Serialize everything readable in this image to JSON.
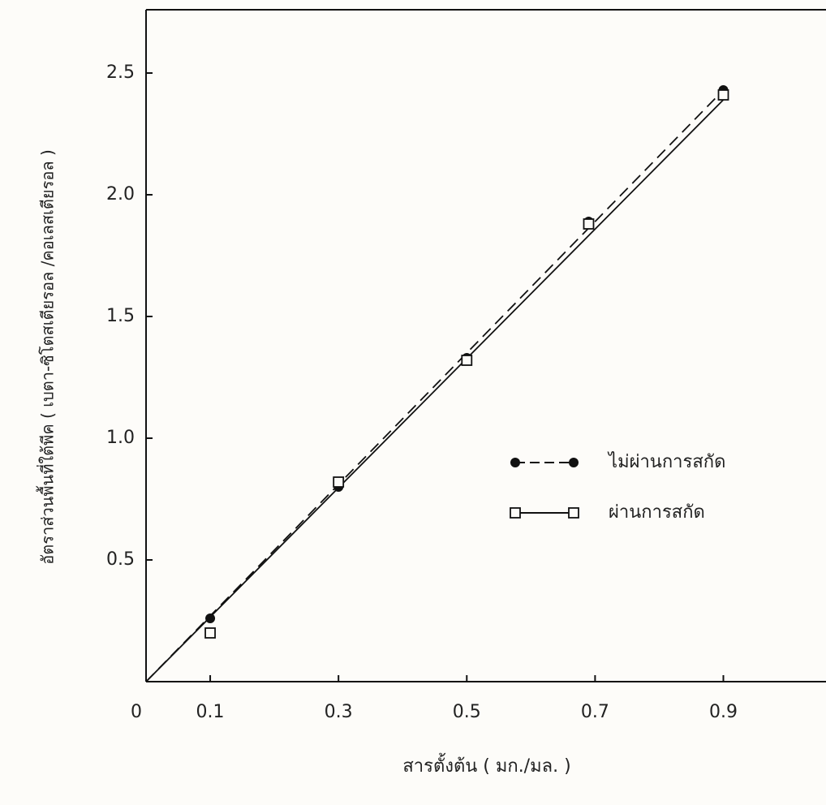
{
  "chart_data": {
    "type": "line",
    "x_label": "สารตั้งต้น ( มก./มล. )",
    "y_label": "อัตราส่วนพื้นที่ใต้พีค ( เบตา-ซิโตสเตียรอล /คอเลสเตียรอล )",
    "xlim": [
      0,
      1.06
    ],
    "ylim": [
      0,
      2.76
    ],
    "xticks": [
      0,
      0.1,
      0.3,
      0.5,
      0.7,
      0.9
    ],
    "yticks": [
      0.5,
      {
        "value": 1,
        "label": "1.0"
      },
      1.5,
      {
        "value": 2,
        "label": "2.0"
      },
      2.5
    ],
    "legend": "right",
    "series": [
      {
        "name": "ไม่ผ่านการสกัด",
        "color": "#111111",
        "marker": "filled-circle",
        "dash": true,
        "x": [
          0.1,
          0.3,
          0.5,
          0.69,
          0.9
        ],
        "values": [
          0.26,
          0.8,
          1.33,
          1.89,
          2.43
        ],
        "line_x": [
          0,
          0.9
        ],
        "line_y": [
          0,
          2.43
        ]
      },
      {
        "name": "ผ่านการสกัด",
        "color": "#111111",
        "marker": "open-square",
        "dash": false,
        "x": [
          0.1,
          0.3,
          0.5,
          0.69,
          0.9
        ],
        "values": [
          0.2,
          0.82,
          1.32,
          1.88,
          2.41
        ],
        "line_x": [
          0,
          0.9
        ],
        "line_y": [
          0,
          2.39
        ]
      }
    ]
  }
}
